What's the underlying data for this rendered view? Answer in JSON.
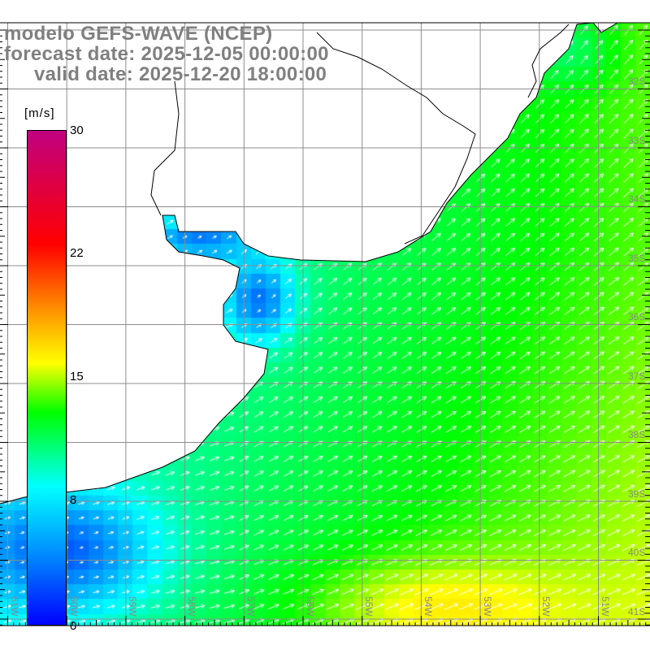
{
  "header": {
    "model": "modelo GEFS-WAVE (NCEP)",
    "forecast_date": "forecast date: 2025-12-05 00:00:00",
    "valid_date": "valid date: 2025-12-20 18:00:00"
  },
  "colorbar": {
    "units": "[m/s]",
    "ticks": [
      "30",
      "22",
      "15",
      "8",
      "0"
    ],
    "range": [
      0,
      30
    ],
    "colors": [
      "#0000ff",
      "#0080ff",
      "#00ffff",
      "#00ff00",
      "#ffff00",
      "#ff9900",
      "#ff0000",
      "#c00080"
    ]
  },
  "axes": {
    "longitudes": [
      "61W",
      "60W",
      "59W",
      "58W",
      "57W",
      "56W",
      "55W",
      "54W",
      "53W",
      "52W",
      "51W"
    ],
    "latitudes": [
      "32S",
      "33S",
      "34S",
      "35S",
      "36S",
      "37S",
      "38S",
      "39S",
      "40S",
      "41S"
    ]
  },
  "colors": {
    "title": "#808080",
    "grid": "#8c8c8c",
    "land": "#ffffff",
    "coast": "#000000",
    "arrow": "#ffffff"
  }
}
